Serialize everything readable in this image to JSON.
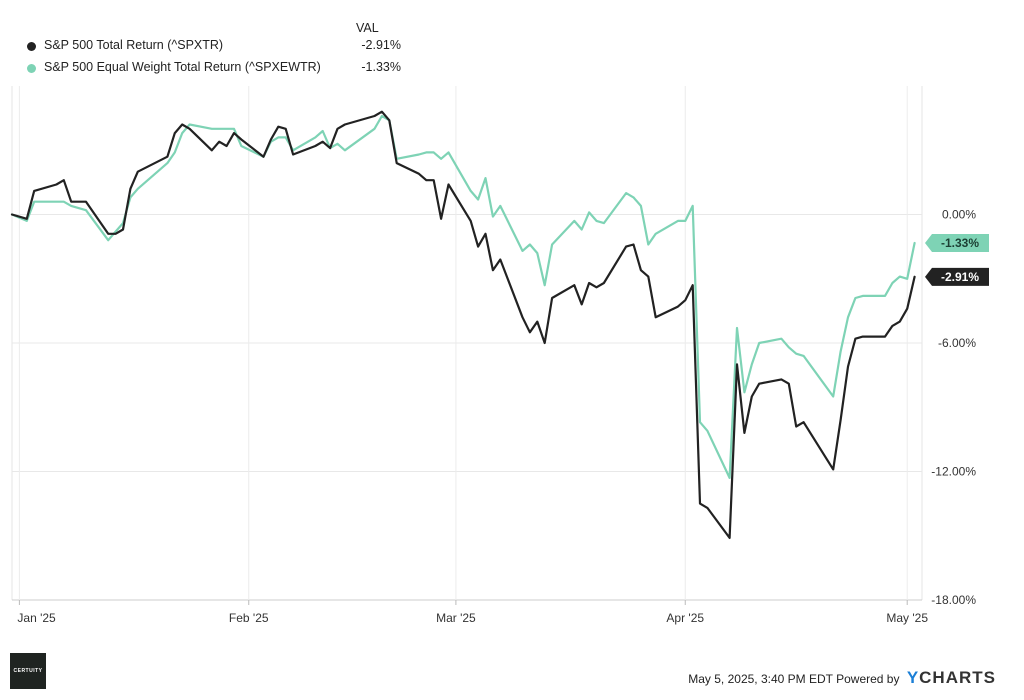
{
  "legend": {
    "header": "VAL",
    "items": [
      {
        "label": "S&P 500 Total Return (^SPXTR)",
        "value": "-2.91%",
        "color": "#222222"
      },
      {
        "label": "S&P 500 Equal Weight Total Return (^SPXEWTR)",
        "value": "-1.33%",
        "color": "#7ed3b5"
      }
    ]
  },
  "chart_data": {
    "type": "line",
    "title": "",
    "xlabel": "",
    "ylabel": "",
    "x_ticks": [
      "Jan '25",
      "Feb '25",
      "Mar '25",
      "Apr '25",
      "May '25"
    ],
    "y_ticks": [
      "0.00%",
      "-6.00%",
      "-12.00%",
      "-18.00%"
    ],
    "ylim": [
      -18,
      6
    ],
    "grid": true,
    "y_axis_side": "right",
    "series": [
      {
        "name": "S&P 500 Total Return (^SPXTR)",
        "color": "#222222",
        "end_label": "-2.91%",
        "points": [
          [
            "2024-12-31",
            0.0
          ],
          [
            "2025-01-02",
            -0.2
          ],
          [
            "2025-01-03",
            1.1
          ],
          [
            "2025-01-06",
            1.4
          ],
          [
            "2025-01-07",
            1.6
          ],
          [
            "2025-01-08",
            0.6
          ],
          [
            "2025-01-10",
            0.6
          ],
          [
            "2025-01-13",
            -0.9
          ],
          [
            "2025-01-14",
            -0.9
          ],
          [
            "2025-01-15",
            -0.7
          ],
          [
            "2025-01-16",
            1.2
          ],
          [
            "2025-01-17",
            2.0
          ],
          [
            "2025-01-21",
            2.7
          ],
          [
            "2025-01-22",
            3.8
          ],
          [
            "2025-01-23",
            4.2
          ],
          [
            "2025-01-24",
            4.0
          ],
          [
            "2025-01-27",
            3.0
          ],
          [
            "2025-01-28",
            3.4
          ],
          [
            "2025-01-29",
            3.2
          ],
          [
            "2025-01-30",
            3.8
          ],
          [
            "2025-01-31",
            3.5
          ],
          [
            "2025-02-03",
            2.7
          ],
          [
            "2025-02-04",
            3.5
          ],
          [
            "2025-02-05",
            4.1
          ],
          [
            "2025-02-06",
            4.0
          ],
          [
            "2025-02-07",
            2.8
          ],
          [
            "2025-02-10",
            3.2
          ],
          [
            "2025-02-11",
            3.4
          ],
          [
            "2025-02-12",
            3.1
          ],
          [
            "2025-02-13",
            4.0
          ],
          [
            "2025-02-14",
            4.2
          ],
          [
            "2025-02-18",
            4.6
          ],
          [
            "2025-02-19",
            4.8
          ],
          [
            "2025-02-20",
            4.4
          ],
          [
            "2025-02-21",
            2.4
          ],
          [
            "2025-02-24",
            1.9
          ],
          [
            "2025-02-25",
            1.6
          ],
          [
            "2025-02-26",
            1.6
          ],
          [
            "2025-02-27",
            -0.2
          ],
          [
            "2025-02-28",
            1.4
          ],
          [
            "2025-03-03",
            -0.3
          ],
          [
            "2025-03-04",
            -1.5
          ],
          [
            "2025-03-05",
            -0.9
          ],
          [
            "2025-03-06",
            -2.6
          ],
          [
            "2025-03-07",
            -2.1
          ],
          [
            "2025-03-10",
            -4.8
          ],
          [
            "2025-03-11",
            -5.5
          ],
          [
            "2025-03-12",
            -5.0
          ],
          [
            "2025-03-13",
            -6.0
          ],
          [
            "2025-03-14",
            -3.9
          ],
          [
            "2025-03-17",
            -3.3
          ],
          [
            "2025-03-18",
            -4.2
          ],
          [
            "2025-03-19",
            -3.2
          ],
          [
            "2025-03-20",
            -3.4
          ],
          [
            "2025-03-21",
            -3.2
          ],
          [
            "2025-03-24",
            -1.5
          ],
          [
            "2025-03-25",
            -1.4
          ],
          [
            "2025-03-26",
            -2.6
          ],
          [
            "2025-03-27",
            -2.9
          ],
          [
            "2025-03-28",
            -4.8
          ],
          [
            "2025-03-31",
            -4.3
          ],
          [
            "2025-04-01",
            -4.0
          ],
          [
            "2025-04-02",
            -3.3
          ],
          [
            "2025-04-03",
            -13.5
          ],
          [
            "2025-04-04",
            -13.7
          ],
          [
            "2025-04-07",
            -15.1
          ],
          [
            "2025-04-08",
            -7.0
          ],
          [
            "2025-04-09",
            -10.2
          ],
          [
            "2025-04-10",
            -8.5
          ],
          [
            "2025-04-11",
            -7.9
          ],
          [
            "2025-04-14",
            -7.7
          ],
          [
            "2025-04-15",
            -7.9
          ],
          [
            "2025-04-16",
            -9.9
          ],
          [
            "2025-04-17",
            -9.7
          ],
          [
            "2025-04-21",
            -11.9
          ],
          [
            "2025-04-22",
            -9.6
          ],
          [
            "2025-04-23",
            -7.1
          ],
          [
            "2025-04-24",
            -5.8
          ],
          [
            "2025-04-25",
            -5.7
          ],
          [
            "2025-04-28",
            -5.7
          ],
          [
            "2025-04-29",
            -5.2
          ],
          [
            "2025-04-30",
            -5.0
          ],
          [
            "2025-05-01",
            -4.4
          ],
          [
            "2025-05-02",
            -2.91
          ]
        ]
      },
      {
        "name": "S&P 500 Equal Weight Total Return (^SPXEWTR)",
        "color": "#7ed3b5",
        "end_label": "-1.33%",
        "points": [
          [
            "2024-12-31",
            0.0
          ],
          [
            "2025-01-02",
            -0.3
          ],
          [
            "2025-01-03",
            0.6
          ],
          [
            "2025-01-06",
            0.6
          ],
          [
            "2025-01-07",
            0.6
          ],
          [
            "2025-01-08",
            0.4
          ],
          [
            "2025-01-10",
            0.2
          ],
          [
            "2025-01-13",
            -1.2
          ],
          [
            "2025-01-14",
            -0.8
          ],
          [
            "2025-01-15",
            -0.4
          ],
          [
            "2025-01-16",
            0.8
          ],
          [
            "2025-01-17",
            1.2
          ],
          [
            "2025-01-21",
            2.4
          ],
          [
            "2025-01-22",
            2.9
          ],
          [
            "2025-01-23",
            3.8
          ],
          [
            "2025-01-24",
            4.2
          ],
          [
            "2025-01-27",
            4.0
          ],
          [
            "2025-01-28",
            4.0
          ],
          [
            "2025-01-29",
            4.0
          ],
          [
            "2025-01-30",
            4.0
          ],
          [
            "2025-01-31",
            3.2
          ],
          [
            "2025-02-03",
            2.7
          ],
          [
            "2025-02-04",
            3.4
          ],
          [
            "2025-02-05",
            3.6
          ],
          [
            "2025-02-06",
            3.6
          ],
          [
            "2025-02-07",
            3.0
          ],
          [
            "2025-02-10",
            3.6
          ],
          [
            "2025-02-11",
            3.9
          ],
          [
            "2025-02-12",
            3.1
          ],
          [
            "2025-02-13",
            3.3
          ],
          [
            "2025-02-14",
            3.0
          ],
          [
            "2025-02-18",
            4.0
          ],
          [
            "2025-02-19",
            4.6
          ],
          [
            "2025-02-20",
            4.4
          ],
          [
            "2025-02-21",
            2.6
          ],
          [
            "2025-02-24",
            2.8
          ],
          [
            "2025-02-25",
            2.9
          ],
          [
            "2025-02-26",
            2.9
          ],
          [
            "2025-02-27",
            2.6
          ],
          [
            "2025-02-28",
            2.9
          ],
          [
            "2025-03-03",
            1.1
          ],
          [
            "2025-03-04",
            0.7
          ],
          [
            "2025-03-05",
            1.7
          ],
          [
            "2025-03-06",
            -0.1
          ],
          [
            "2025-03-07",
            0.4
          ],
          [
            "2025-03-10",
            -1.7
          ],
          [
            "2025-03-11",
            -1.4
          ],
          [
            "2025-03-12",
            -1.8
          ],
          [
            "2025-03-13",
            -3.3
          ],
          [
            "2025-03-14",
            -1.4
          ],
          [
            "2025-03-17",
            -0.3
          ],
          [
            "2025-03-18",
            -0.7
          ],
          [
            "2025-03-19",
            0.1
          ],
          [
            "2025-03-20",
            -0.3
          ],
          [
            "2025-03-21",
            -0.4
          ],
          [
            "2025-03-24",
            1.0
          ],
          [
            "2025-03-25",
            0.8
          ],
          [
            "2025-03-26",
            0.4
          ],
          [
            "2025-03-27",
            -1.4
          ],
          [
            "2025-03-28",
            -0.9
          ],
          [
            "2025-03-31",
            -0.3
          ],
          [
            "2025-04-01",
            -0.3
          ],
          [
            "2025-04-02",
            0.4
          ],
          [
            "2025-04-03",
            -9.7
          ],
          [
            "2025-04-04",
            -10.1
          ],
          [
            "2025-04-07",
            -12.3
          ],
          [
            "2025-04-08",
            -5.3
          ],
          [
            "2025-04-09",
            -8.3
          ],
          [
            "2025-04-10",
            -7.0
          ],
          [
            "2025-04-11",
            -6.0
          ],
          [
            "2025-04-14",
            -5.8
          ],
          [
            "2025-04-15",
            -6.2
          ],
          [
            "2025-04-16",
            -6.5
          ],
          [
            "2025-04-17",
            -6.6
          ],
          [
            "2025-04-21",
            -8.5
          ],
          [
            "2025-04-22",
            -6.4
          ],
          [
            "2025-04-23",
            -4.8
          ],
          [
            "2025-04-24",
            -3.9
          ],
          [
            "2025-04-25",
            -3.8
          ],
          [
            "2025-04-28",
            -3.8
          ],
          [
            "2025-04-29",
            -3.2
          ],
          [
            "2025-04-30",
            -2.9
          ],
          [
            "2025-05-01",
            -3.0
          ],
          [
            "2025-05-02",
            -1.33
          ]
        ]
      }
    ]
  },
  "footer": {
    "timestamp": "May 5, 2025, 3:40 PM EDT Powered by",
    "brand_y": "Y",
    "brand_rest": "CHARTS"
  },
  "logo": {
    "text": "CERTUITY"
  }
}
